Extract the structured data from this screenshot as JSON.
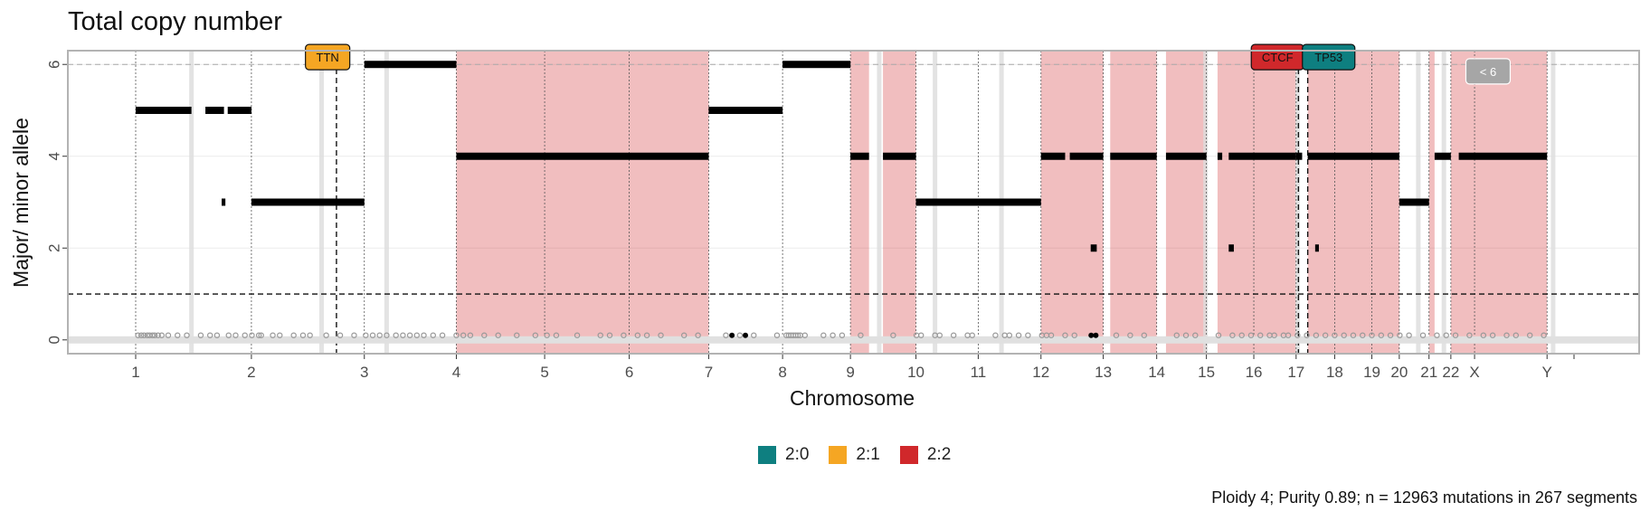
{
  "chart_data": {
    "type": "scatter",
    "title": "Total copy number",
    "xlabel": "Chromosome",
    "ylabel": "Major/ minor allele",
    "ylim": [
      -0.3,
      6.3
    ],
    "yticks": [
      0,
      2,
      4,
      6
    ],
    "reference_lines": [
      1,
      6
    ],
    "chromosomes": [
      {
        "name": "1",
        "start": 0,
        "end": 249
      },
      {
        "name": "2",
        "start": 249,
        "end": 492
      },
      {
        "name": "3",
        "start": 492,
        "end": 690
      },
      {
        "name": "4",
        "start": 690,
        "end": 880
      },
      {
        "name": "5",
        "start": 880,
        "end": 1062
      },
      {
        "name": "6",
        "start": 1062,
        "end": 1233
      },
      {
        "name": "7",
        "start": 1233,
        "end": 1392
      },
      {
        "name": "8",
        "start": 1392,
        "end": 1538
      },
      {
        "name": "9",
        "start": 1538,
        "end": 1679
      },
      {
        "name": "10",
        "start": 1679,
        "end": 1813
      },
      {
        "name": "11",
        "start": 1813,
        "end": 1948
      },
      {
        "name": "12",
        "start": 1948,
        "end": 2082
      },
      {
        "name": "13",
        "start": 2082,
        "end": 2197
      },
      {
        "name": "14",
        "start": 2197,
        "end": 2304
      },
      {
        "name": "15",
        "start": 2304,
        "end": 2406
      },
      {
        "name": "16",
        "start": 2406,
        "end": 2497
      },
      {
        "name": "17",
        "start": 2497,
        "end": 2580
      },
      {
        "name": "18",
        "start": 2580,
        "end": 2660
      },
      {
        "name": "19",
        "start": 2660,
        "end": 2719
      },
      {
        "name": "20",
        "start": 2719,
        "end": 2783
      },
      {
        "name": "21",
        "start": 2783,
        "end": 2830
      },
      {
        "name": "22",
        "start": 2830,
        "end": 2881
      },
      {
        "name": "X",
        "start": 2881,
        "end": 3037
      },
      {
        "name": "Y",
        "start": 3037,
        "end": 3095
      }
    ],
    "highlight_regions": [
      {
        "start": 690,
        "end": 1233,
        "label": "2:2"
      },
      {
        "start": 1538,
        "end": 1578,
        "label": "2:2"
      },
      {
        "start": 1608,
        "end": 1679,
        "label": "2:2"
      },
      {
        "start": 1948,
        "end": 2082,
        "label": "2:2"
      },
      {
        "start": 2097,
        "end": 2197,
        "label": "2:2"
      },
      {
        "start": 2217,
        "end": 2304,
        "label": "2:2"
      },
      {
        "start": 2328,
        "end": 2497,
        "label": "2:2"
      },
      {
        "start": 2522,
        "end": 2719,
        "label": "2:2"
      },
      {
        "start": 2783,
        "end": 2795,
        "label": "2:2"
      },
      {
        "start": 2830,
        "end": 3037,
        "label": "2:2"
      }
    ],
    "driver_lines": [
      432,
      2502,
      2522
    ],
    "segments": [
      {
        "start": 0,
        "end": 120,
        "value": 5
      },
      {
        "start": 150,
        "end": 190,
        "value": 5
      },
      {
        "start": 198,
        "end": 249,
        "value": 5
      },
      {
        "start": 249,
        "end": 492,
        "value": 3
      },
      {
        "start": 185,
        "end": 193,
        "value": 3
      },
      {
        "start": 492,
        "end": 690,
        "value": 6
      },
      {
        "start": 690,
        "end": 1233,
        "value": 4
      },
      {
        "start": 1233,
        "end": 1392,
        "value": 5
      },
      {
        "start": 1392,
        "end": 1538,
        "value": 6
      },
      {
        "start": 1538,
        "end": 1578,
        "value": 4
      },
      {
        "start": 1608,
        "end": 1679,
        "value": 4
      },
      {
        "start": 1679,
        "end": 1948,
        "value": 3
      },
      {
        "start": 1948,
        "end": 2000,
        "value": 4
      },
      {
        "start": 2010,
        "end": 2082,
        "value": 4
      },
      {
        "start": 2055,
        "end": 2068,
        "value": 2
      },
      {
        "start": 2097,
        "end": 2197,
        "value": 4
      },
      {
        "start": 2217,
        "end": 2304,
        "value": 4
      },
      {
        "start": 2328,
        "end": 2338,
        "value": 4
      },
      {
        "start": 2352,
        "end": 2497,
        "value": 4
      },
      {
        "start": 2352,
        "end": 2363,
        "value": 2
      },
      {
        "start": 2497,
        "end": 2510,
        "value": 4
      },
      {
        "start": 2522,
        "end": 2719,
        "value": 4
      },
      {
        "start": 2538,
        "end": 2546,
        "value": 2
      },
      {
        "start": 2719,
        "end": 2783,
        "value": 3
      },
      {
        "start": 2795,
        "end": 2830,
        "value": 4
      },
      {
        "start": 2847,
        "end": 3037,
        "value": 4
      }
    ],
    "mutation_x": [
      5,
      12,
      18,
      25,
      30,
      36,
      41,
      48,
      56,
      70,
      90,
      110,
      140,
      160,
      175,
      200,
      215,
      235,
      250,
      265,
      270,
      295,
      310,
      340,
      360,
      375,
      410,
      440,
      470,
      495,
      510,
      525,
      540,
      560,
      575,
      590,
      605,
      620,
      640,
      660,
      690,
      705,
      720,
      750,
      780,
      820,
      860,
      885,
      905,
      950,
      1000,
      1020,
      1050,
      1080,
      1100,
      1130,
      1180,
      1210,
      1270,
      1300,
      1330,
      1380,
      1400,
      1405,
      1410,
      1415,
      1420,
      1425,
      1430,
      1440,
      1480,
      1500,
      1520,
      1560,
      1630,
      1680,
      1690,
      1720,
      1730,
      1760,
      1790,
      1800,
      1850,
      1870,
      1880,
      1900,
      1920,
      1950,
      1960,
      1970,
      2000,
      2020,
      2110,
      2140,
      2170,
      2240,
      2260,
      2280,
      2330,
      2360,
      2380,
      2400,
      2420,
      2440,
      2450,
      2470,
      2480,
      2500,
      2520,
      2540,
      2560,
      2580,
      2600,
      2620,
      2640,
      2660,
      2680,
      2700,
      2720,
      2740,
      2770,
      2800,
      2820,
      2840,
      2870,
      2900,
      2920,
      2950,
      2970,
      3000,
      3030
    ],
    "mutation_x_highlight": [
      1283,
      1312,
      2056,
      2066
    ],
    "annotations": [
      {
        "label": "TTN",
        "x": 413,
        "y": 6.16,
        "color": "#F5A623"
      },
      {
        "label": "CTCF",
        "x": 2457,
        "y": 6.16,
        "color": "#D0282B"
      },
      {
        "label": "TP53",
        "x": 2567,
        "y": 6.16,
        "color": "#0E7F80"
      },
      {
        "label": "< 6",
        "x": 2910,
        "y": 5.85,
        "color": "#A6A6A6"
      }
    ],
    "legend": [
      {
        "label": "2:0",
        "color": "#0E7F80"
      },
      {
        "label": "2:1",
        "color": "#F5A623"
      },
      {
        "label": "2:2",
        "color": "#D0282B"
      }
    ],
    "caption": "Ploidy 4; Purity  0.89; n = 12963 mutations in 267 segments",
    "grid": true
  }
}
